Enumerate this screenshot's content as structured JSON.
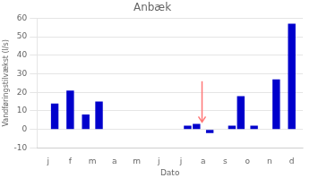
{
  "chart_data": {
    "type": "bar",
    "title": "Anbæk",
    "xlabel": "Dato",
    "ylabel": "Vandføringstilvækst (l/s)",
    "x": [
      1.3,
      2.0,
      2.7,
      3.3,
      7.3,
      7.7,
      8.3,
      9.3,
      9.7,
      10.3,
      11.3,
      12.0
    ],
    "values": [
      14,
      21,
      8,
      15,
      2,
      3,
      -2,
      2,
      18,
      2,
      27,
      57
    ],
    "color": "#0000cc",
    "xlim": [
      0.5,
      12.5
    ],
    "xticks": [
      {
        "value": 1,
        "label": "j"
      },
      {
        "value": 2,
        "label": "f"
      },
      {
        "value": 3,
        "label": "m"
      },
      {
        "value": 4,
        "label": "a"
      },
      {
        "value": 5,
        "label": "m"
      },
      {
        "value": 6,
        "label": "j"
      },
      {
        "value": 7,
        "label": "j"
      },
      {
        "value": 8,
        "label": "a"
      },
      {
        "value": 9,
        "label": "s"
      },
      {
        "value": 10,
        "label": "o"
      },
      {
        "value": 11,
        "label": "n"
      },
      {
        "value": 12,
        "label": "d"
      }
    ],
    "ylim": [
      -10,
      60
    ],
    "yticks": [
      -10,
      0,
      10,
      20,
      30,
      40,
      50,
      60
    ],
    "grid": "y",
    "annotations": [
      {
        "type": "arrow",
        "x": 7.95,
        "y_start": 26,
        "y_end": 4,
        "color": "#ff7777"
      }
    ]
  }
}
